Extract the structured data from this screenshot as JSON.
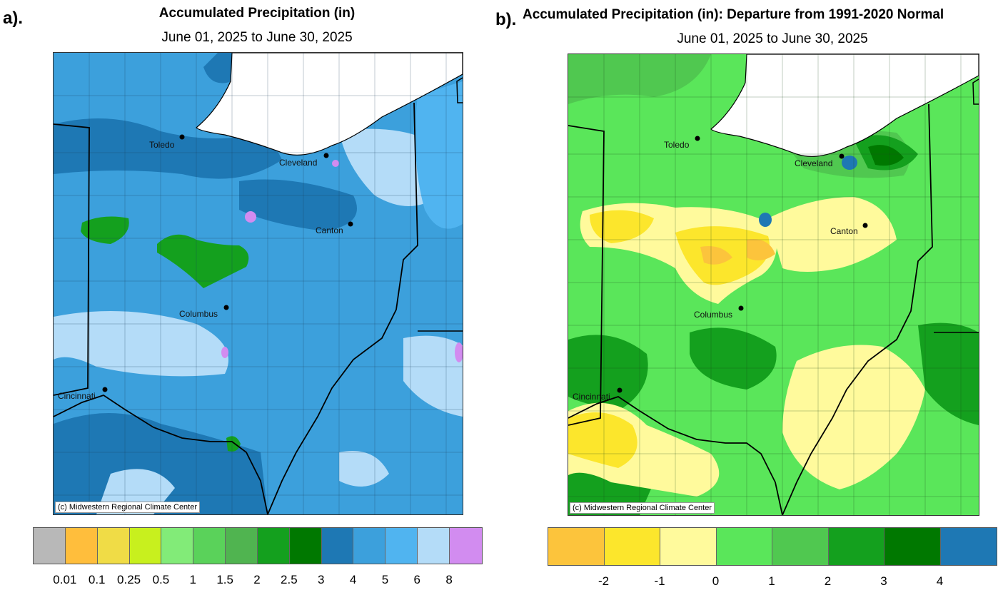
{
  "left": {
    "panel_label": "a).",
    "title": "Accumulated Precipitation (in)",
    "subtitle": "June 01, 2025 to June 30, 2025",
    "credit": "(c) Midwestern Regional Climate Center",
    "cities": [
      {
        "name": "Toledo"
      },
      {
        "name": "Cleveland"
      },
      {
        "name": "Canton"
      },
      {
        "name": "Columbus"
      },
      {
        "name": "Cincinnati"
      }
    ],
    "legend_colors": [
      "#b8b8b8",
      "#ffbe3c",
      "#f0dc46",
      "#c8f01e",
      "#82eb78",
      "#5ad25a",
      "#50b450",
      "#14a01e",
      "#007800",
      "#1e78b4",
      "#3ca0dc",
      "#50b4f0",
      "#b4dcf8",
      "#d28cf0"
    ],
    "legend_ticks": [
      "0.01",
      "0.1",
      "0.25",
      "0.5",
      "1",
      "1.5",
      "2",
      "2.5",
      "3",
      "4",
      "5",
      "6",
      "8"
    ]
  },
  "right": {
    "panel_label": "b).",
    "title": "Accumulated Precipitation (in): Departure from 1991-2020 Normal",
    "subtitle": "June 01, 2025 to June 30, 2025",
    "credit": "(c) Midwestern Regional Climate Center",
    "cities": [
      {
        "name": "Toledo"
      },
      {
        "name": "Cleveland"
      },
      {
        "name": "Canton"
      },
      {
        "name": "Columbus"
      },
      {
        "name": "Cincinnati"
      }
    ],
    "legend_colors": [
      "#fcc43c",
      "#fce62c",
      "#fffa9c",
      "#5ae65a",
      "#50c850",
      "#14a01e",
      "#007800",
      "#1e78b4"
    ],
    "legend_ticks": [
      "-2",
      "-1",
      "0",
      "1",
      "2",
      "3",
      "4"
    ]
  }
}
